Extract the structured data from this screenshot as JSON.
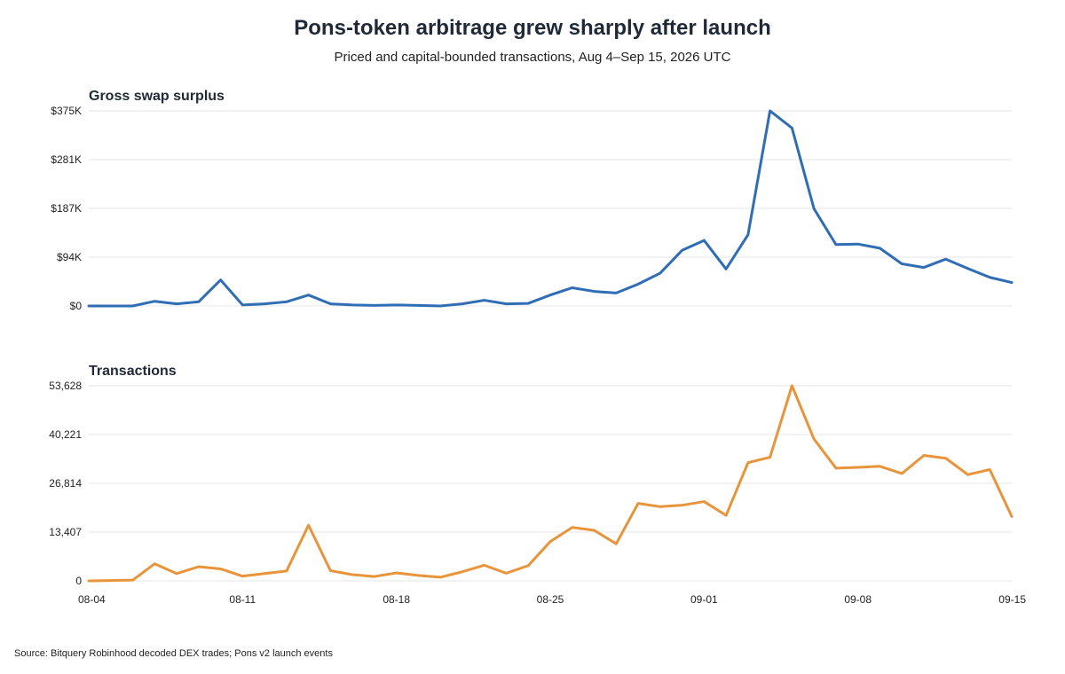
{
  "chart_data": [
    {
      "type": "line",
      "title": "Pons-token arbitrage grew sharply after launch",
      "subtitle": "Priced and capital-bounded transactions, Aug 4–Sep 15, 2026 UTC",
      "panel_title": "Gross swap surplus",
      "x": [
        "08-04",
        "08-05",
        "08-06",
        "08-07",
        "08-08",
        "08-09",
        "08-10",
        "08-11",
        "08-12",
        "08-13",
        "08-14",
        "08-15",
        "08-16",
        "08-17",
        "08-18",
        "08-19",
        "08-20",
        "08-21",
        "08-22",
        "08-23",
        "08-24",
        "08-25",
        "08-26",
        "08-27",
        "08-28",
        "08-29",
        "08-30",
        "08-31",
        "09-01",
        "09-02",
        "09-03",
        "09-04",
        "09-05",
        "09-06",
        "09-07",
        "09-08",
        "09-09",
        "09-10",
        "09-11",
        "09-12",
        "09-13",
        "09-14",
        "09-15"
      ],
      "xticks": [
        "08-04",
        "08-11",
        "08-18",
        "08-25",
        "09-01",
        "09-08",
        "09-15"
      ],
      "yticks": [
        "$0",
        "$94K",
        "$187K",
        "$281K",
        "$375K"
      ],
      "ylim": [
        0,
        375000
      ],
      "grid": true,
      "color": "#2f6db5",
      "series": [
        {
          "values": [
            0,
            0,
            0,
            9000,
            4000,
            8000,
            50000,
            2000,
            4000,
            8000,
            21000,
            4000,
            2000,
            1000,
            2000,
            1000,
            0,
            4000,
            11000,
            4000,
            5000,
            21000,
            35000,
            28000,
            25000,
            42000,
            63000,
            107000,
            126000,
            71000,
            137000,
            375000,
            342000,
            187000,
            118000,
            119000,
            111000,
            81000,
            74000,
            90000,
            72000,
            55000,
            45000
          ]
        }
      ]
    },
    {
      "type": "line",
      "panel_title": "Transactions",
      "x": [
        "08-04",
        "08-05",
        "08-06",
        "08-07",
        "08-08",
        "08-09",
        "08-10",
        "08-11",
        "08-12",
        "08-13",
        "08-14",
        "08-15",
        "08-16",
        "08-17",
        "08-18",
        "08-19",
        "08-20",
        "08-21",
        "08-22",
        "08-23",
        "08-24",
        "08-25",
        "08-26",
        "08-27",
        "08-28",
        "08-29",
        "08-30",
        "08-31",
        "09-01",
        "09-02",
        "09-03",
        "09-04",
        "09-05",
        "09-06",
        "09-07",
        "09-08",
        "09-09",
        "09-10",
        "09-11",
        "09-12",
        "09-13",
        "09-14",
        "09-15"
      ],
      "xticks": [
        "08-04",
        "08-11",
        "08-18",
        "08-25",
        "09-01",
        "09-08",
        "09-15"
      ],
      "yticks": [
        "0",
        "13,407",
        "26,814",
        "40,221",
        "53,628"
      ],
      "ylim": [
        0,
        53628
      ],
      "grid": true,
      "color": "#e8943a",
      "series": [
        {
          "values": [
            0,
            100,
            200,
            4700,
            2000,
            3900,
            3300,
            1300,
            2000,
            2700,
            15300,
            2800,
            1700,
            1200,
            2200,
            1500,
            1000,
            2500,
            4300,
            2100,
            4200,
            10800,
            14700,
            13900,
            10200,
            21300,
            20400,
            20800,
            21800,
            18000,
            32500,
            34000,
            53628,
            39000,
            31000,
            31200,
            31500,
            29500,
            34500,
            33700,
            29200,
            30600,
            17700
          ]
        }
      ]
    }
  ],
  "source": "Source: Bitquery Robinhood decoded DEX trades; Pons v2 launch events"
}
